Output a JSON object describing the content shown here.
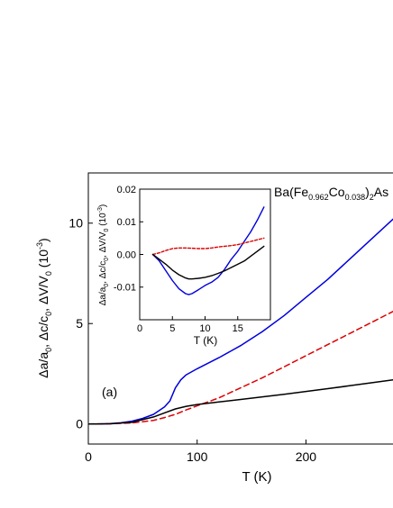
{
  "chart_data": [
    {
      "type": "line",
      "panel_label": "(a)",
      "annotation": "Ba(Fe0.962Co0.038)2As",
      "xlabel": "T (K)",
      "ylabel": "Δa/a0, Δc/c0, ΔV/V0 (10⁻³)",
      "xlim": [
        0,
        280
      ],
      "ylim": [
        -1,
        12.5
      ],
      "xticks": [
        0,
        100,
        200
      ],
      "yticks": [
        0,
        5,
        10
      ],
      "grid": false,
      "series": [
        {
          "color": "#0000dd",
          "style": "solid",
          "x": [
            0,
            10,
            20,
            30,
            40,
            50,
            60,
            70,
            75,
            80,
            85,
            90,
            100,
            120,
            140,
            160,
            180,
            200,
            220,
            240,
            260,
            280
          ],
          "y": [
            0,
            0,
            0.02,
            0.06,
            0.14,
            0.28,
            0.48,
            0.85,
            1.15,
            1.8,
            2.2,
            2.45,
            2.75,
            3.3,
            3.9,
            4.6,
            5.4,
            6.3,
            7.2,
            8.2,
            9.2,
            10.2
          ]
        },
        {
          "color": "#dd0000",
          "style": "dashed",
          "x": [
            0,
            20,
            40,
            60,
            70,
            80,
            90,
            100,
            120,
            140,
            160,
            180,
            200,
            220,
            240,
            260,
            280
          ],
          "y": [
            0,
            0.01,
            0.05,
            0.18,
            0.32,
            0.48,
            0.7,
            0.9,
            1.3,
            1.8,
            2.3,
            2.85,
            3.4,
            3.95,
            4.5,
            5.05,
            5.6
          ]
        },
        {
          "color": "#000000",
          "style": "solid",
          "x": [
            0,
            20,
            40,
            60,
            70,
            80,
            90,
            100,
            120,
            140,
            160,
            180,
            200,
            220,
            240,
            260,
            280
          ],
          "y": [
            0,
            0.01,
            0.08,
            0.35,
            0.55,
            0.75,
            0.88,
            0.97,
            1.1,
            1.22,
            1.35,
            1.48,
            1.62,
            1.76,
            1.9,
            2.05,
            2.2
          ]
        }
      ]
    },
    {
      "type": "line",
      "role": "inset",
      "xlabel": "T (K)",
      "ylabel": "Δa/a0, Δc/c0, ΔV/V0 (10⁻³)",
      "xlim": [
        0,
        20
      ],
      "ylim": [
        -0.02,
        0.02
      ],
      "xticks": [
        0,
        5,
        10,
        15
      ],
      "yticks": [
        -0.01,
        0.0,
        0.01,
        0.02
      ],
      "ytick_labels": [
        "-0.01",
        "0.00",
        "0.01",
        "0.02"
      ],
      "grid": false,
      "series": [
        {
          "color": "#0000dd",
          "style": "solid",
          "x": [
            2,
            3,
            4,
            5,
            6,
            7,
            7.5,
            8,
            9,
            10,
            11,
            12,
            13,
            14,
            15,
            16,
            17,
            18,
            19
          ],
          "y": [
            0,
            -0.002,
            -0.005,
            -0.008,
            -0.0105,
            -0.012,
            -0.0123,
            -0.012,
            -0.0108,
            -0.0095,
            -0.0085,
            -0.007,
            -0.0045,
            -0.0015,
            0.001,
            0.004,
            0.007,
            0.0105,
            0.0145
          ]
        },
        {
          "color": "#dd0000",
          "style": "dashed",
          "x": [
            2,
            3,
            4,
            5,
            6,
            7,
            8,
            9,
            10,
            11,
            12,
            13,
            14,
            15,
            16,
            17,
            18,
            19
          ],
          "y": [
            0,
            0.0005,
            0.0012,
            0.0018,
            0.002,
            0.002,
            0.0019,
            0.0018,
            0.0018,
            0.002,
            0.0023,
            0.0025,
            0.0027,
            0.003,
            0.0035,
            0.004,
            0.0045,
            0.005
          ]
        },
        {
          "color": "#000000",
          "style": "solid",
          "x": [
            2,
            3,
            4,
            5,
            6,
            7,
            7.5,
            8,
            9,
            10,
            11,
            12,
            13,
            14,
            15,
            16,
            17,
            18,
            19
          ],
          "y": [
            0,
            -0.0015,
            -0.003,
            -0.0048,
            -0.0062,
            -0.0072,
            -0.0075,
            -0.0075,
            -0.0073,
            -0.007,
            -0.0065,
            -0.0058,
            -0.005,
            -0.004,
            -0.003,
            -0.002,
            -0.0005,
            0.001,
            0.0025
          ]
        }
      ]
    }
  ],
  "text": {
    "annotation_main": "Ba(Fe",
    "annotation_sub1": "0.962",
    "annotation_mid": "Co",
    "annotation_sub2": "0.038",
    "annotation_end": ")",
    "annotation_sub3": "2",
    "annotation_tail": "As",
    "ylabel_parts": [
      "Δa/a",
      "0",
      ", Δc/c",
      "0",
      ", ΔV/V",
      "0",
      " (10",
      "-3",
      ")"
    ]
  }
}
